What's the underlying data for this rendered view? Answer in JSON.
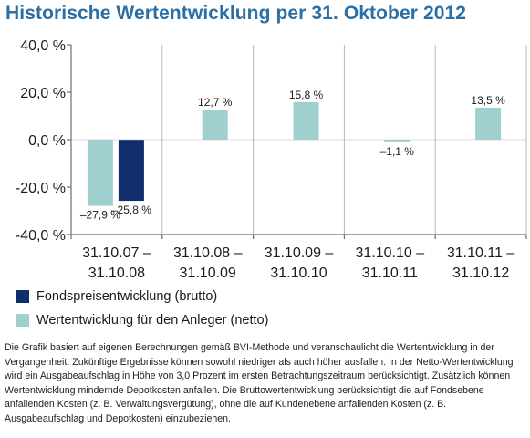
{
  "title": "Historische Wertentwicklung per 31. Oktober 2012",
  "colors": {
    "brutto": "#0f2e6b",
    "netto": "#9fcfcf",
    "title": "#2a6fa6",
    "axis": "#6d6d6d",
    "grid": "#b7b7b7"
  },
  "chart_data": {
    "type": "bar",
    "categories": [
      "31.10.07 – 31.10.08",
      "31.10.08 – 31.10.09",
      "31.10.09 – 31.10.10",
      "31.10.10 – 31.10.11",
      "31.10.11 – 31.10.12"
    ],
    "category_lines": [
      [
        "31.10.07 –",
        "31.10.08"
      ],
      [
        "31.10.08 –",
        "31.10.09"
      ],
      [
        "31.10.09 –",
        "31.10.10"
      ],
      [
        "31.10.10 –",
        "31.10.11"
      ],
      [
        "31.10.11 –",
        "31.10.12"
      ]
    ],
    "series": [
      {
        "name": "Wertentwicklung für den Anleger (netto)",
        "key": "netto",
        "values": [
          -27.9,
          12.7,
          15.8,
          -1.1,
          13.5
        ],
        "labels": [
          "–27,9 %",
          "12,7 %",
          "15,8 %",
          "–1,1 %",
          "13,5 %"
        ]
      },
      {
        "name": "Fondspreisentwicklung (brutto)",
        "key": "brutto",
        "values": [
          -25.8,
          null,
          null,
          null,
          null
        ],
        "labels": [
          "–25,8 %",
          "",
          "",
          "",
          ""
        ]
      }
    ],
    "ylim": [
      -40,
      40
    ],
    "yticks": [
      40,
      20,
      0,
      -20,
      -40
    ],
    "ytick_labels": [
      "40,0 %",
      "20,0 %",
      "0,0 %",
      "-20,0 %",
      "-40,0 %"
    ],
    "grid": "vertical category separators",
    "legend_position": "bottom-left"
  },
  "legend": [
    {
      "label": "Fondspreisentwicklung (brutto)",
      "color_key": "brutto"
    },
    {
      "label": "Wertentwicklung für den Anleger (netto)",
      "color_key": "netto"
    }
  ],
  "footnote": "Die Grafik basiert auf eigenen Berechnungen gemäß BVI-Methode und veranschaulicht die Wertentwicklung in der Vergangenheit. Zukünftige Ergebnisse können sowohl niedriger als auch höher ausfallen. In der Netto-Wertentwicklung wird ein Ausgabeaufschlag in Höhe von 3,0 Prozent im ersten Betrachtungszeitraum berücksichtigt. Zusätzlich können Wertentwicklung mindernde Depotkosten anfallen. Die Bruttowertentwicklung berücksichtigt die auf Fondsebene anfallenden Kosten (z. B. Verwaltungsvergütung), ohne die auf Kundenebene anfallenden Kosten (z. B. Ausgabeaufschlag und Depotkosten) einzubeziehen."
}
